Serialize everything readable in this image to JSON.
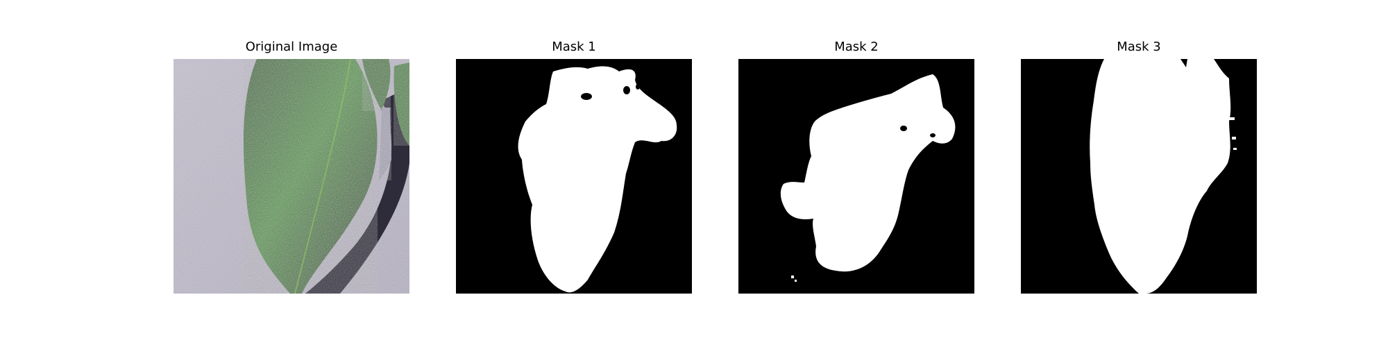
{
  "figure": {
    "panels": [
      {
        "title": "Original Image"
      },
      {
        "title": "Mask 1"
      },
      {
        "title": "Mask 2"
      },
      {
        "title": "Mask 3"
      }
    ]
  },
  "colors": {
    "background_gray": "#bdbac6",
    "leaf_green": "#3f7a33",
    "leaf_dark": "#1e3a1c",
    "shadow": "#2a2a35",
    "mask_fg": "#ffffff",
    "mask_bg": "#000000"
  }
}
